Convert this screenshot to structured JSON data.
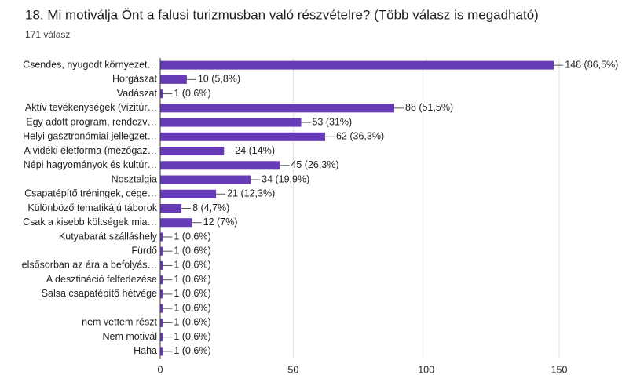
{
  "chart_data": {
    "type": "bar",
    "orientation": "horizontal",
    "title": "18. Mi motiválja Önt a falusi turizmusban való részvételre?  (Több válasz is megadható)",
    "subtitle": "171 válasz",
    "categories": [
      "Csendes, nyugodt környezet…",
      "Horgászat",
      "Vadászat",
      "Aktív tevékenységek (vízitúr…",
      "Egy adott program, rendezv…",
      "Helyi gasztronómiai jellegzet…",
      "A vidéki életforma (mezőgaz…",
      "Népi hagyományok és kultúr…",
      "Nosztalgia",
      "Csapatépítő tréningek, cége…",
      "Különböző tematikájú táborok",
      "Csak a kisebb költségek mia…",
      "Kutyabarát szálláshely",
      "Fürdő",
      "elsősorban az ára a befolyás…",
      "A desztináció felfedezése",
      "Salsa csapatépítő hétvége",
      null,
      "nem vettem részt",
      "Nem motivál",
      "Haha"
    ],
    "values": [
      148,
      10,
      1,
      88,
      53,
      62,
      24,
      45,
      34,
      21,
      8,
      12,
      1,
      1,
      1,
      1,
      1,
      1,
      1,
      1,
      1
    ],
    "value_labels": [
      "148 (86,5%)",
      "10 (5,8%)",
      "1 (0,6%)",
      "88 (51,5%)",
      "53 (31%)",
      "62 (36,3%)",
      "24 (14%)",
      "45 (26,3%)",
      "34 (19,9%)",
      "21 (12,3%)",
      "8 (4,7%)",
      "12 (7%)",
      "1 (0,6%)",
      "1 (0,6%)",
      "1 (0,6%)",
      "1 (0,6%)",
      "1 (0,6%)",
      "1 (0,6%)",
      "1 (0,6%)",
      "1 (0,6%)",
      "1 (0,6%)"
    ],
    "color": "#673ab7",
    "xlim": [
      0,
      150
    ],
    "xticks": [
      0,
      50,
      100,
      150
    ],
    "grid": true
  }
}
